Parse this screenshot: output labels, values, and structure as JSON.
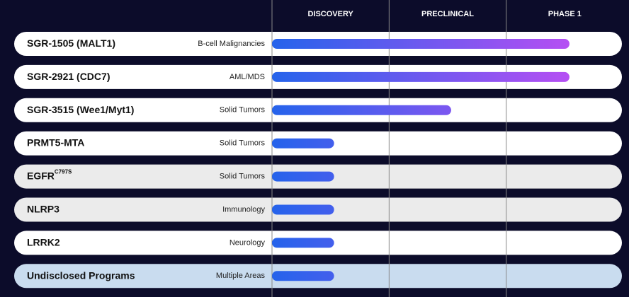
{
  "chart_data": {
    "type": "bar",
    "orientation": "horizontal",
    "categories": [
      "SGR-1505 (MALT1)",
      "SGR-2921 (CDC7)",
      "SGR-3515 (Wee1/Myt1)",
      "PRMT5-MTA",
      "EGFR",
      "NLRP3",
      "LRRK2",
      "Undisclosed Programs"
    ],
    "label_superscripts": [
      null,
      null,
      null,
      null,
      "C797S",
      null,
      null,
      null
    ],
    "indications": [
      "B-cell Malignancies",
      "AML/MDS",
      "Solid Tumors",
      "Solid Tumors",
      "Solid Tumors",
      "Immunology",
      "Neurology",
      "Multiple Areas"
    ],
    "values": [
      2.54,
      2.54,
      1.53,
      0.53,
      0.53,
      0.53,
      0.53,
      0.53
    ],
    "xlim": [
      0,
      3
    ],
    "xticks": [
      {
        "value": 0.5,
        "label": "DISCOVERY"
      },
      {
        "value": 1.5,
        "label": "PRECLINICAL"
      },
      {
        "value": 2.5,
        "label": "PHASE 1"
      }
    ],
    "row_colors": [
      "#ffffff",
      "#ffffff",
      "#ffffff",
      "#ffffff",
      "#ebebeb",
      "#ebebeb",
      "#ffffff",
      "#c9dcef"
    ],
    "bar_gradient": [
      "#2563eb",
      "#b54ff3"
    ]
  }
}
